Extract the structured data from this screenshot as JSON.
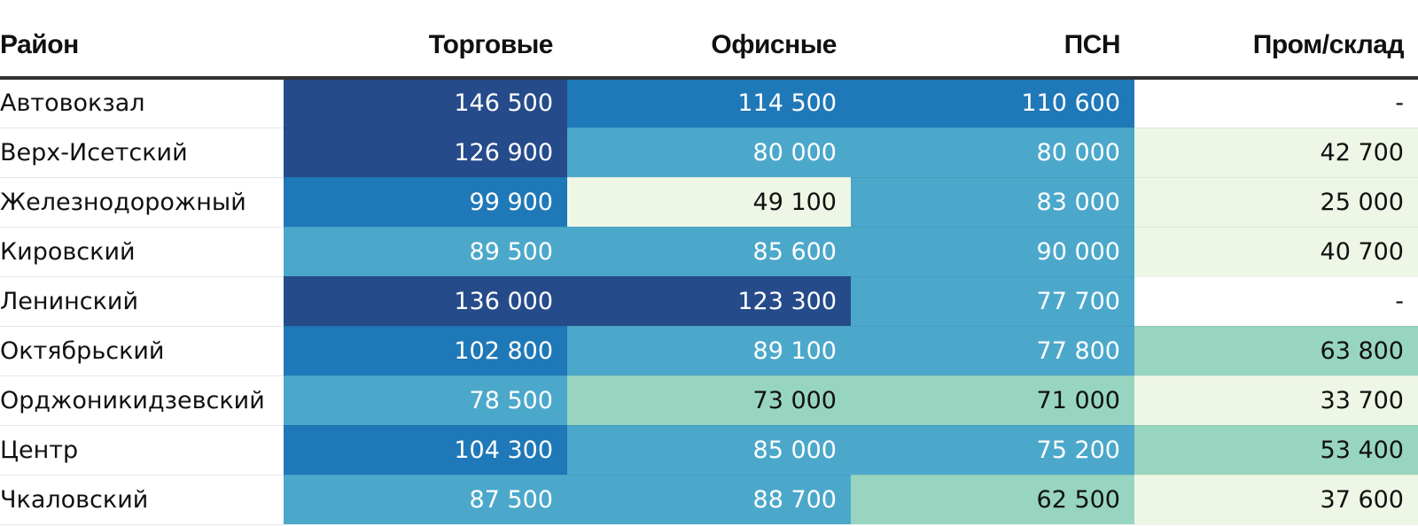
{
  "chart_data": {
    "type": "heatmap",
    "columns": [
      "Район",
      "Торговые",
      "Офисные",
      "ПСН",
      "Пром/склад"
    ],
    "rows": [
      {
        "name": "Автовокзал",
        "values": [
          "146 500",
          "114 500",
          "110 600",
          "-"
        ],
        "numeric": [
          146500,
          114500,
          110600,
          null
        ]
      },
      {
        "name": "Верх-Исетский",
        "values": [
          "126 900",
          "80 000",
          "80 000",
          "42 700"
        ],
        "numeric": [
          126900,
          80000,
          80000,
          42700
        ]
      },
      {
        "name": "Железнодорожный",
        "values": [
          "99 900",
          "49 100",
          "83 000",
          "25 000"
        ],
        "numeric": [
          99900,
          49100,
          83000,
          25000
        ]
      },
      {
        "name": "Кировский",
        "values": [
          "89 500",
          "85 600",
          "90 000",
          "40 700"
        ],
        "numeric": [
          89500,
          85600,
          90000,
          40700
        ]
      },
      {
        "name": "Ленинский",
        "values": [
          "136 000",
          "123 300",
          "77 700",
          "-"
        ],
        "numeric": [
          136000,
          123300,
          77700,
          null
        ]
      },
      {
        "name": "Октябрьский",
        "values": [
          "102 800",
          "89 100",
          "77 800",
          "63 800"
        ],
        "numeric": [
          102800,
          89100,
          77800,
          63800
        ]
      },
      {
        "name": "Орджоникидзевский",
        "values": [
          "78 500",
          "73 000",
          "71 000",
          "33 700"
        ],
        "numeric": [
          78500,
          73000,
          71000,
          33700
        ]
      },
      {
        "name": "Центр",
        "values": [
          "104 300",
          "85 000",
          "75 200",
          "53 400"
        ],
        "numeric": [
          104300,
          85000,
          75200,
          53400
        ]
      },
      {
        "name": "Чкаловский",
        "values": [
          "87 500",
          "88 700",
          "62 500",
          "37 600"
        ],
        "numeric": [
          87500,
          88700,
          62500,
          37600
        ]
      }
    ],
    "color_scale": [
      {
        "min": 120000,
        "color": "#254b8b",
        "text": "#ffffff"
      },
      {
        "min": 95000,
        "color": "#1f78b8",
        "text": "#ffffff"
      },
      {
        "min": 75000,
        "color": "#4ba8cb",
        "text": "#ffffff"
      },
      {
        "min": 50000,
        "color": "#97d5c0",
        "text": "#111111"
      },
      {
        "min": 0,
        "color": "#eef7e6",
        "text": "#111111"
      }
    ],
    "empty_color": "#ffffff"
  }
}
